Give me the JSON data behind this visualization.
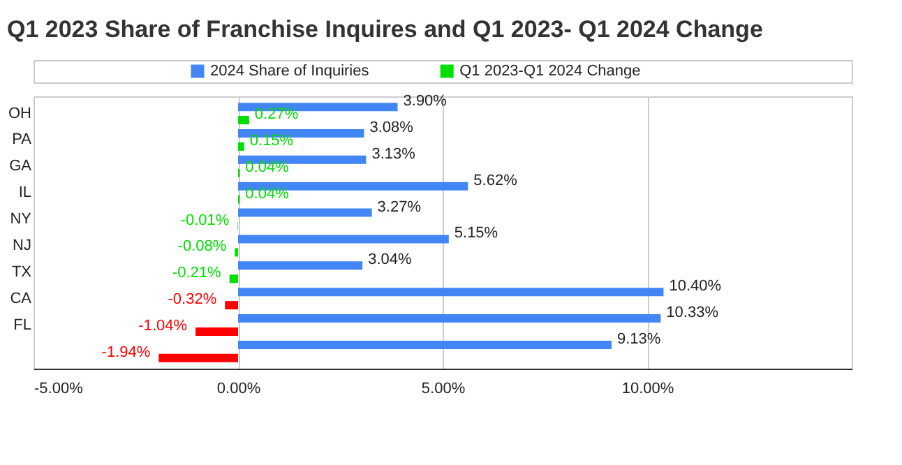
{
  "chart_data": {
    "type": "bar",
    "orientation": "horizontal",
    "title": "Q1 2023 Share of Franchise Inquires and Q1 2023- Q1 2024 Change",
    "categories": [
      "OH",
      "PA",
      "GA",
      "IL",
      "NY",
      "NJ",
      "TX",
      "CA",
      "FL",
      null
    ],
    "series": [
      {
        "name": "2024 Share of Inquiries",
        "color": "#4285f4",
        "values": [
          3.9,
          3.08,
          3.13,
          5.62,
          3.27,
          5.15,
          3.04,
          10.4,
          10.33,
          9.13
        ],
        "value_labels": [
          "3.90%",
          "3.08%",
          "3.13%",
          "5.62%",
          "3.27%",
          "5.15%",
          "3.04%",
          "10.40%",
          "10.33%",
          "9.13%"
        ]
      },
      {
        "name": "Q1 2023-Q1 2024 Change",
        "color": "#00e000",
        "colors": [
          "#00e000",
          "#00e000",
          "#00e000",
          "#00e000",
          "#00e000",
          "#00e000",
          "#00e000",
          "#ff0000",
          "#ff0000",
          "#ff0000"
        ],
        "values": [
          0.27,
          0.15,
          0.04,
          0.04,
          -0.01,
          -0.08,
          -0.21,
          -0.32,
          -1.04,
          -1.94
        ],
        "value_labels": [
          "0.27%",
          "0.15%",
          "0.04%",
          "0.04%",
          "-0.01%",
          "-0.08%",
          "-0.21%",
          "-0.32%",
          "-1.04%",
          "-1.94%"
        ]
      }
    ],
    "xlim": [
      -5,
      15
    ],
    "xticks": [
      {
        "value": -5,
        "label": "-5.00%"
      },
      {
        "value": 0,
        "label": "0.00%"
      },
      {
        "value": 5,
        "label": "5.00%"
      },
      {
        "value": 10,
        "label": "10.00%"
      }
    ],
    "grid": "x",
    "legend": "top"
  }
}
